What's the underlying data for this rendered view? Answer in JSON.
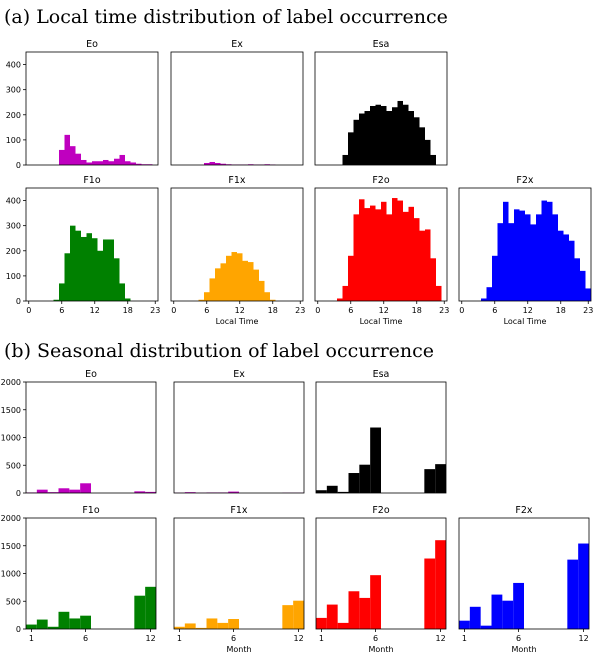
{
  "section_a": {
    "title": "(a) Local time distribution of label occurrence"
  },
  "section_b": {
    "title": "(b) Seasonal distribution of label occurrence"
  },
  "colors": {
    "Eo": "#bf00bf",
    "Ex": "#bf00bf",
    "Esa": "#000000",
    "F1o": "#008000",
    "F1x": "#ffa500",
    "F2o": "#ff0000",
    "F2x": "#0000ff"
  },
  "chart_data": [
    {
      "type": "bar",
      "name": "Eo",
      "title": "Eo",
      "xlabel": "",
      "xlim": [
        -0.5,
        23.5
      ],
      "ylim": [
        0,
        450
      ],
      "xticks": [],
      "yticks": [
        0,
        100,
        200,
        300,
        400
      ],
      "x": [
        6,
        7,
        8,
        9,
        10,
        11,
        12,
        13,
        14,
        15,
        16,
        17,
        18,
        19,
        20,
        21,
        22
      ],
      "values": [
        60,
        120,
        75,
        45,
        20,
        10,
        15,
        15,
        20,
        15,
        25,
        40,
        15,
        10,
        5,
        3,
        3
      ]
    },
    {
      "type": "bar",
      "name": "Ex",
      "title": "Ex",
      "xlabel": "",
      "xlim": [
        -0.5,
        23.5
      ],
      "ylim": [
        0,
        450
      ],
      "xticks": [],
      "yticks": [],
      "x": [
        6,
        7,
        8,
        9,
        10,
        11,
        12,
        13,
        14,
        15,
        16,
        17,
        18
      ],
      "values": [
        8,
        12,
        8,
        5,
        3,
        2,
        2,
        2,
        3,
        2,
        2,
        3,
        2
      ]
    },
    {
      "type": "bar",
      "name": "Esa",
      "title": "Esa",
      "xlabel": "",
      "xlim": [
        -0.5,
        23.5
      ],
      "ylim": [
        0,
        450
      ],
      "xticks": [],
      "yticks": [],
      "x": [
        5,
        6,
        7,
        8,
        9,
        10,
        11,
        12,
        13,
        14,
        15,
        16,
        17,
        18,
        19,
        20,
        21
      ],
      "values": [
        40,
        130,
        180,
        205,
        215,
        235,
        240,
        235,
        215,
        230,
        255,
        240,
        215,
        190,
        150,
        100,
        40
      ]
    },
    {
      "type": "bar",
      "name": "F1o",
      "title": "F1o",
      "xlabel": "",
      "xlim": [
        -0.5,
        23.5
      ],
      "ylim": [
        0,
        450
      ],
      "xticks": [
        0,
        6,
        12,
        18,
        23
      ],
      "yticks": [
        0,
        100,
        200,
        300,
        400
      ],
      "x": [
        5,
        6,
        7,
        8,
        9,
        10,
        11,
        12,
        13,
        14,
        15,
        16,
        17,
        18
      ],
      "values": [
        5,
        70,
        190,
        300,
        280,
        255,
        270,
        250,
        200,
        245,
        245,
        170,
        70,
        10
      ]
    },
    {
      "type": "bar",
      "name": "F1x",
      "title": "F1x",
      "xlabel": "Local Time",
      "xlim": [
        -0.5,
        23.5
      ],
      "ylim": [
        0,
        450
      ],
      "xticks": [
        0,
        6,
        12,
        18,
        23
      ],
      "yticks": [],
      "x": [
        5,
        6,
        7,
        8,
        9,
        10,
        11,
        12,
        13,
        14,
        15,
        16,
        17,
        18
      ],
      "values": [
        5,
        35,
        90,
        130,
        150,
        180,
        195,
        190,
        160,
        155,
        125,
        80,
        35,
        5
      ]
    },
    {
      "type": "bar",
      "name": "F2o",
      "title": "F2o",
      "xlabel": "Local Time",
      "xlim": [
        -0.5,
        23.5
      ],
      "ylim": [
        0,
        450
      ],
      "xticks": [
        0,
        6,
        12,
        18,
        23
      ],
      "yticks": [],
      "x": [
        4,
        5,
        6,
        7,
        8,
        9,
        10,
        11,
        12,
        13,
        14,
        15,
        16,
        17,
        18,
        19,
        20,
        21,
        22
      ],
      "values": [
        10,
        60,
        180,
        345,
        405,
        370,
        380,
        365,
        395,
        345,
        410,
        400,
        355,
        375,
        330,
        280,
        285,
        170,
        60
      ]
    },
    {
      "type": "bar",
      "name": "F2x",
      "title": "F2x",
      "xlabel": "Local Time",
      "xlim": [
        -0.5,
        23.5
      ],
      "ylim": [
        0,
        450
      ],
      "xticks": [
        0,
        6,
        12,
        18,
        23
      ],
      "yticks": [],
      "x": [
        4,
        5,
        6,
        7,
        8,
        9,
        10,
        11,
        12,
        13,
        14,
        15,
        16,
        17,
        18,
        19,
        20,
        21,
        22,
        23
      ],
      "values": [
        10,
        55,
        180,
        310,
        395,
        310,
        365,
        360,
        345,
        305,
        345,
        400,
        395,
        345,
        280,
        265,
        240,
        170,
        120,
        50
      ]
    },
    {
      "type": "bar",
      "name": "Eo",
      "title": "Eo",
      "xlabel": "",
      "xlim": [
        0.5,
        12.5
      ],
      "ylim": [
        0,
        2000
      ],
      "xticks": [],
      "yticks": [
        0,
        500,
        1000,
        1500,
        2000
      ],
      "x": [
        1,
        2,
        3,
        4,
        5,
        6,
        7,
        8,
        9,
        10,
        11,
        12
      ],
      "values": [
        10,
        60,
        15,
        85,
        60,
        175,
        0,
        0,
        0,
        0,
        30,
        20
      ]
    },
    {
      "type": "bar",
      "name": "Ex",
      "title": "Ex",
      "xlabel": "",
      "xlim": [
        0.5,
        12.5
      ],
      "ylim": [
        0,
        2000
      ],
      "xticks": [],
      "yticks": [],
      "x": [
        1,
        2,
        3,
        4,
        5,
        6,
        7,
        8,
        9,
        10,
        11,
        12
      ],
      "values": [
        5,
        15,
        5,
        10,
        10,
        25,
        0,
        0,
        0,
        0,
        5,
        5
      ]
    },
    {
      "type": "bar",
      "name": "Esa",
      "title": "Esa",
      "xlabel": "",
      "xlim": [
        0.5,
        12.5
      ],
      "ylim": [
        0,
        2000
      ],
      "xticks": [],
      "yticks": [],
      "x": [
        1,
        2,
        3,
        4,
        5,
        6,
        7,
        8,
        9,
        10,
        11,
        12
      ],
      "values": [
        50,
        130,
        20,
        360,
        510,
        1180,
        0,
        0,
        0,
        0,
        430,
        520
      ]
    },
    {
      "type": "bar",
      "name": "F1o",
      "title": "F1o",
      "xlabel": "",
      "xlim": [
        0.5,
        12.5
      ],
      "ylim": [
        0,
        2000
      ],
      "xticks": [
        1,
        6,
        12
      ],
      "yticks": [
        0,
        500,
        1000,
        1500,
        2000
      ],
      "x": [
        1,
        2,
        3,
        4,
        5,
        6,
        7,
        8,
        9,
        10,
        11,
        12
      ],
      "values": [
        80,
        170,
        40,
        310,
        190,
        240,
        0,
        0,
        0,
        0,
        600,
        760
      ]
    },
    {
      "type": "bar",
      "name": "F1x",
      "title": "F1x",
      "xlabel": "Month",
      "xlim": [
        0.5,
        12.5
      ],
      "ylim": [
        0,
        2000
      ],
      "xticks": [
        1,
        6,
        12
      ],
      "yticks": [],
      "x": [
        1,
        2,
        3,
        4,
        5,
        6,
        7,
        8,
        9,
        10,
        11,
        12
      ],
      "values": [
        40,
        100,
        20,
        190,
        110,
        180,
        0,
        0,
        0,
        0,
        430,
        510
      ]
    },
    {
      "type": "bar",
      "name": "F2o",
      "title": "F2o",
      "xlabel": "Month",
      "xlim": [
        0.5,
        12.5
      ],
      "ylim": [
        0,
        2000
      ],
      "xticks": [
        1,
        6,
        12
      ],
      "yticks": [],
      "x": [
        1,
        2,
        3,
        4,
        5,
        6,
        7,
        8,
        9,
        10,
        11,
        12
      ],
      "values": [
        200,
        440,
        110,
        680,
        560,
        970,
        0,
        0,
        0,
        0,
        1270,
        1600
      ]
    },
    {
      "type": "bar",
      "name": "F2x",
      "title": "F2x",
      "xlabel": "Month",
      "xlim": [
        0.5,
        12.5
      ],
      "ylim": [
        0,
        2000
      ],
      "xticks": [
        1,
        6,
        12
      ],
      "yticks": [],
      "x": [
        1,
        2,
        3,
        4,
        5,
        6,
        7,
        8,
        9,
        10,
        11,
        12
      ],
      "values": [
        150,
        400,
        60,
        620,
        510,
        830,
        0,
        0,
        0,
        0,
        1250,
        1540
      ]
    }
  ]
}
